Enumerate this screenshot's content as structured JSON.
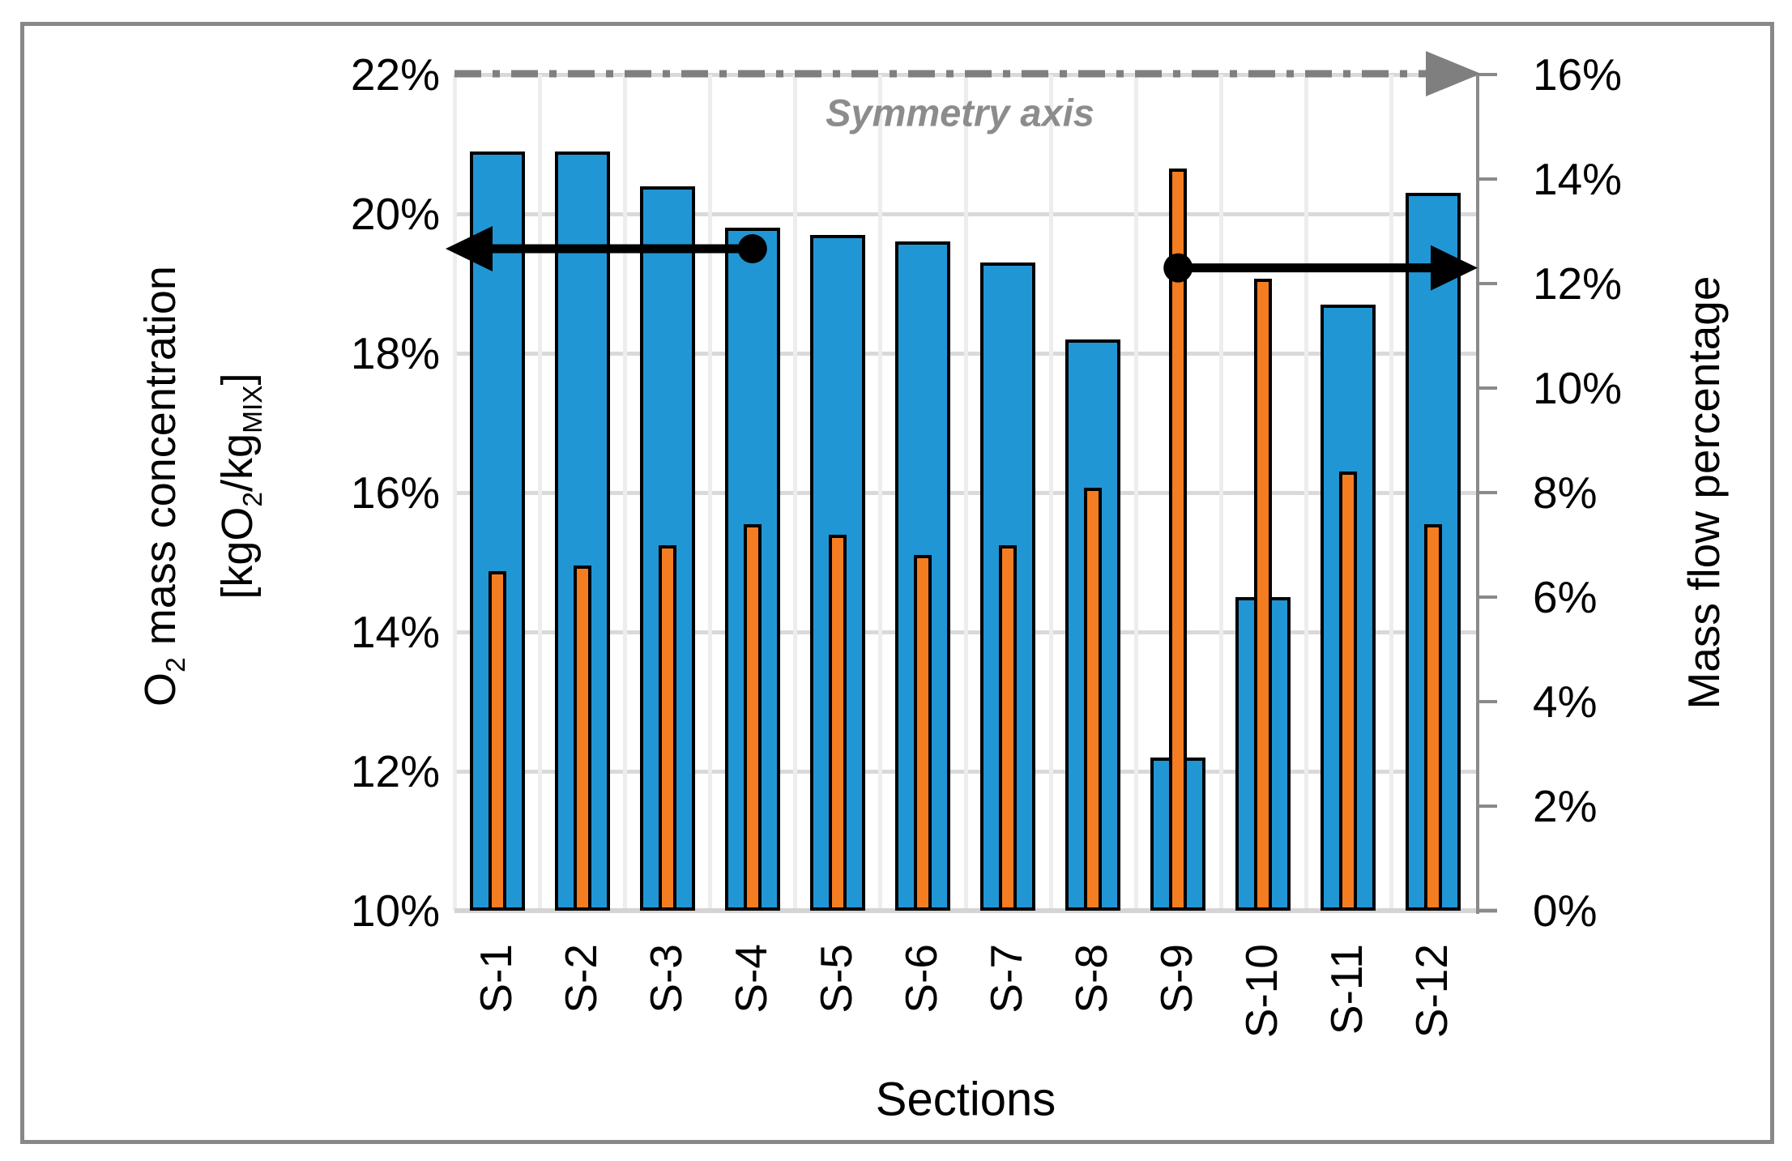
{
  "chart_data": {
    "type": "bar",
    "title": "",
    "xlabel": "Sections",
    "categories": [
      "S-1",
      "S-2",
      "S-3",
      "S-4",
      "S-5",
      "S-6",
      "S-7",
      "S-8",
      "S-9",
      "S-10",
      "S-11",
      "S-12"
    ],
    "series": [
      {
        "name": "O2 mass concentration",
        "axis": "left",
        "color": "#2196d5",
        "values": [
          20.9,
          20.9,
          20.4,
          19.8,
          19.7,
          19.6,
          19.3,
          18.2,
          12.2,
          14.5,
          18.7,
          20.3
        ]
      },
      {
        "name": "Mass flow percentage",
        "axis": "right",
        "color": "#f57d21",
        "values": [
          6.5,
          6.6,
          7.0,
          7.4,
          7.2,
          6.8,
          7.0,
          8.1,
          14.2,
          12.1,
          8.4,
          7.4
        ]
      }
    ],
    "left_axis": {
      "title_pre": "O",
      "title_sub": "2",
      "title_post": " mass concentration",
      "units_p1": "[kgO",
      "units_s1": "2",
      "units_p2": "/kg",
      "units_s2": "MIX",
      "units_p3": "]",
      "min": 10,
      "max": 22,
      "step": 2,
      "tick_labels": [
        "22%",
        "20%",
        "18%",
        "16%",
        "14%",
        "12%",
        "10%"
      ]
    },
    "right_axis": {
      "title": "Mass flow percentage",
      "min": 0,
      "max": 16,
      "step": 2,
      "tick_labels": [
        "16%",
        "14%",
        "12%",
        "10%",
        "8%",
        "6%",
        "4%",
        "2%",
        "0%"
      ]
    },
    "grid": {
      "horizontal": true,
      "vertical": true
    },
    "legend": "none",
    "annotations": {
      "symmetry_label": "Symmetry axis",
      "symmetry_line_value_left_axis": 22,
      "left_arrow": {
        "section": "S-4",
        "left_axis_value": 19.5
      },
      "right_arrow": {
        "section": "S-9",
        "right_axis_value": 12.3
      }
    },
    "colors": {
      "blue_bar": "#2196d5",
      "orange_bar": "#f57d21",
      "bar_border": "#000000",
      "gridline": "#d9d9d9",
      "vertical_gridline": "#ededed",
      "axis_gray": "#888888",
      "symmetry_gray": "#7f7f7f",
      "symmetry_text": "#8c8c8c",
      "background": "#ffffff"
    }
  }
}
